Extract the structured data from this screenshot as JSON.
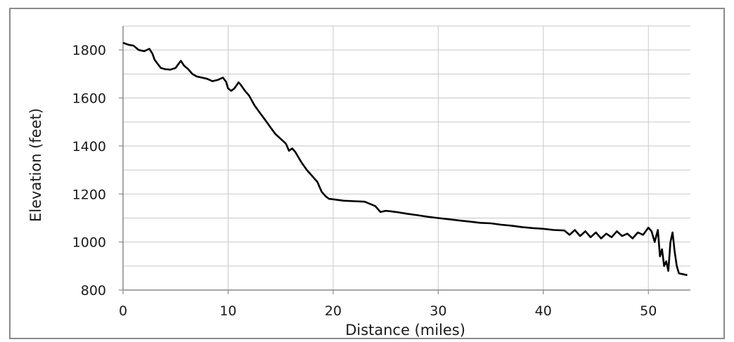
{
  "chart_data": {
    "type": "line",
    "title": "",
    "xlabel": "Distance (miles)",
    "ylabel": "Elevation (feet)",
    "xlim": [
      0,
      54
    ],
    "ylim": [
      800,
      1900
    ],
    "x_ticks": [
      0,
      10,
      20,
      30,
      40,
      50
    ],
    "y_ticks": [
      800,
      1000,
      1200,
      1400,
      1600,
      1800
    ],
    "grid": true,
    "legend": "none",
    "series": [
      {
        "color": "#000000",
        "x": [
          0,
          0.5,
          1,
          1.5,
          2,
          2.5,
          2.8,
          3,
          3.3,
          3.6,
          4,
          4.5,
          5,
          5.5,
          5.8,
          6.2,
          6.6,
          7,
          7.5,
          8,
          8.5,
          9,
          9.5,
          9.8,
          10,
          10.3,
          10.6,
          11,
          11.2,
          11.6,
          12,
          12.5,
          13,
          13.5,
          14,
          14.5,
          15,
          15.5,
          15.8,
          16.1,
          16.4,
          16.6,
          17,
          17.5,
          18,
          18.5,
          18.9,
          19.3,
          19.6,
          20,
          20.5,
          21,
          22,
          23,
          24,
          24.5,
          25,
          25.5,
          26,
          27,
          28,
          29,
          30,
          31,
          32,
          33,
          34,
          35,
          36,
          37,
          38,
          39,
          40,
          41,
          42,
          42.5,
          43,
          43.5,
          44,
          44.5,
          45,
          45.5,
          46,
          46.5,
          47,
          47.5,
          48,
          48.5,
          49,
          49.5,
          50,
          50.3,
          50.6,
          50.9,
          51.1,
          51.3,
          51.5,
          51.7,
          51.9,
          52.1,
          52.3,
          52.5,
          52.7,
          52.9,
          53.1,
          53.4,
          53.7
        ],
        "y": [
          1830,
          1822,
          1818,
          1800,
          1795,
          1805,
          1785,
          1760,
          1742,
          1725,
          1720,
          1718,
          1725,
          1755,
          1735,
          1720,
          1700,
          1690,
          1685,
          1680,
          1670,
          1675,
          1685,
          1668,
          1640,
          1630,
          1640,
          1665,
          1655,
          1630,
          1610,
          1570,
          1540,
          1510,
          1480,
          1450,
          1430,
          1410,
          1380,
          1390,
          1375,
          1360,
          1330,
          1300,
          1275,
          1250,
          1210,
          1190,
          1180,
          1178,
          1175,
          1172,
          1170,
          1168,
          1150,
          1125,
          1130,
          1128,
          1125,
          1118,
          1112,
          1105,
          1100,
          1095,
          1090,
          1085,
          1080,
          1078,
          1072,
          1068,
          1062,
          1058,
          1055,
          1050,
          1048,
          1030,
          1050,
          1025,
          1045,
          1020,
          1040,
          1015,
          1035,
          1020,
          1045,
          1025,
          1035,
          1015,
          1040,
          1030,
          1060,
          1045,
          1000,
          1050,
          940,
          970,
          900,
          920,
          880,
          1000,
          1040,
          960,
          900,
          870,
          868,
          865,
          862
        ]
      }
    ]
  }
}
